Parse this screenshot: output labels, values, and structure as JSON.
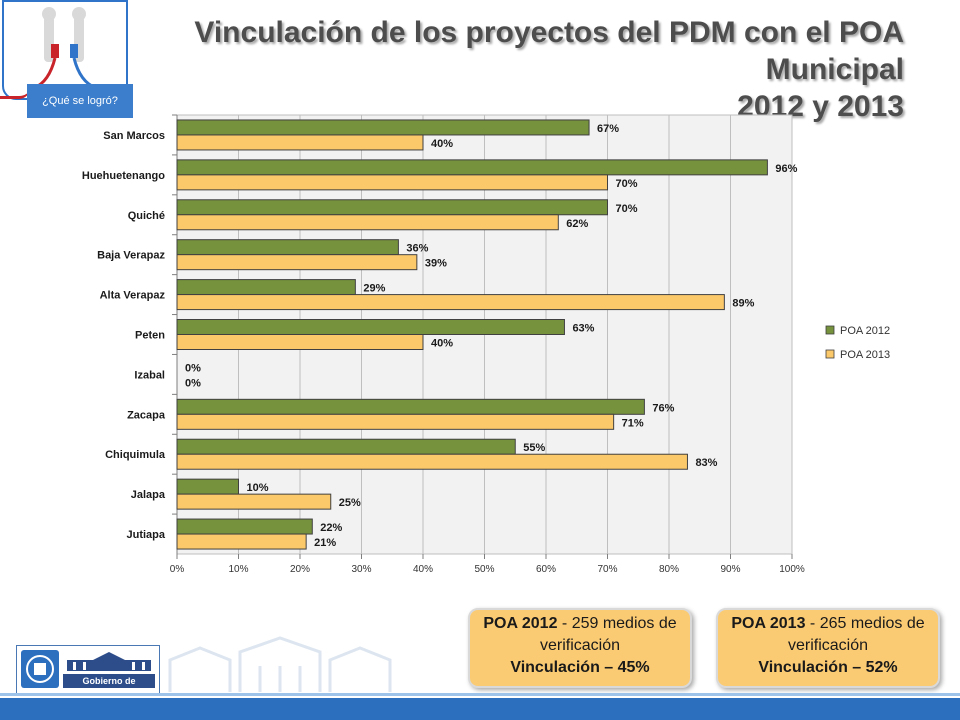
{
  "header": {
    "title_line1": "Vinculación de los proyectos del PDM con el POA Municipal",
    "title_line2": "2012 y 2013",
    "tag_label": "¿Qué se logró?"
  },
  "colors": {
    "poa2012": "#76923c",
    "poa2013": "#fcc96a",
    "plot_bg": "#f2f2f2",
    "accent_blue": "#2c6fbf"
  },
  "chart_data": {
    "type": "bar",
    "orientation": "horizontal",
    "categories": [
      "San Marcos",
      "Huehuetenango",
      "Quiché",
      "Baja Verapaz",
      "Alta Verapaz",
      "Peten",
      "Izabal",
      "Zacapa",
      "Chiquimula",
      "Jalapa",
      "Jutiapa"
    ],
    "series": [
      {
        "name": "POA 2012",
        "values": [
          67,
          96,
          70,
          36,
          29,
          63,
          0,
          76,
          55,
          10,
          22
        ]
      },
      {
        "name": "POA 2013",
        "values": [
          40,
          70,
          62,
          39,
          89,
          40,
          0,
          71,
          83,
          25,
          21
        ]
      }
    ],
    "xlim": [
      0,
      100
    ],
    "xticks": [
      "0%",
      "10%",
      "20%",
      "30%",
      "40%",
      "50%",
      "60%",
      "70%",
      "80%",
      "90%",
      "100%"
    ],
    "value_suffix": "%",
    "grid": true,
    "legend": "right"
  },
  "summary": [
    {
      "heading": "POA 2012",
      "detail": " - 259 medios de verificación",
      "result": "Vinculación  – 45%"
    },
    {
      "heading": "POA 2013",
      "detail": " - 265 medios de verificación",
      "result": "Vinculación  – 52%"
    }
  ],
  "footer": {
    "gov_label": "Gobierno de Guatemala"
  }
}
